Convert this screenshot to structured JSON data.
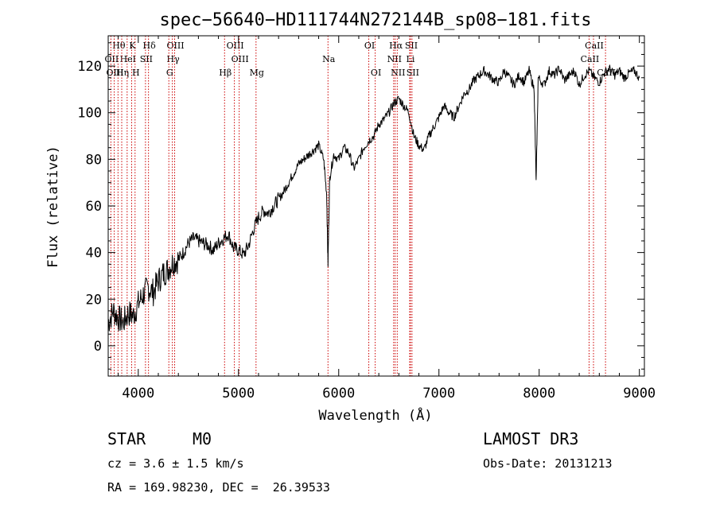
{
  "chart_data": {
    "type": "line",
    "title": "spec−56640−HD111744N272144B_sp08−181.fits",
    "xlabel": "Wavelength (Å)",
    "ylabel": "Flux (relative)",
    "xlim": [
      3700,
      9050
    ],
    "ylim": [
      -13,
      133
    ],
    "xticks": [
      4000,
      5000,
      6000,
      7000,
      8000,
      9000
    ],
    "yticks": [
      0,
      20,
      40,
      60,
      80,
      100,
      120
    ],
    "grid": false,
    "line_color": "#000000",
    "marker_line_color": "#cc0000",
    "spectrum": {
      "x": [
        3700,
        3750,
        3800,
        3850,
        3900,
        3950,
        4000,
        4050,
        4100,
        4150,
        4200,
        4250,
        4300,
        4350,
        4400,
        4450,
        4500,
        4550,
        4600,
        4650,
        4700,
        4750,
        4800,
        4850,
        4900,
        4950,
        5000,
        5050,
        5100,
        5150,
        5200,
        5250,
        5300,
        5350,
        5400,
        5450,
        5500,
        5550,
        5600,
        5650,
        5700,
        5750,
        5800,
        5850,
        5880,
        5893,
        5910,
        5950,
        6000,
        6050,
        6100,
        6150,
        6200,
        6250,
        6300,
        6350,
        6400,
        6450,
        6500,
        6550,
        6600,
        6650,
        6700,
        6750,
        6800,
        6850,
        6900,
        6950,
        7000,
        7050,
        7100,
        7150,
        7200,
        7250,
        7300,
        7350,
        7400,
        7450,
        7500,
        7550,
        7600,
        7650,
        7700,
        7750,
        7800,
        7850,
        7900,
        7950,
        7970,
        7990,
        8050,
        8100,
        8150,
        8200,
        8250,
        8300,
        8350,
        8400,
        8450,
        8500,
        8550,
        8600,
        8650,
        8700,
        8750,
        8800,
        8850,
        8900,
        8950,
        9000
      ],
      "y": [
        10,
        15,
        12,
        10,
        14,
        13,
        18,
        22,
        25,
        23,
        28,
        31,
        33,
        36,
        37,
        40,
        44,
        46,
        45,
        44,
        43,
        41,
        44,
        46,
        48,
        42,
        41,
        39,
        43,
        50,
        55,
        58,
        57,
        60,
        63,
        66,
        70,
        74,
        78,
        80,
        82,
        84,
        86,
        80,
        65,
        35,
        72,
        82,
        80,
        85,
        83,
        76,
        80,
        85,
        88,
        90,
        95,
        97,
        100,
        104,
        106,
        103,
        100,
        90,
        86,
        84,
        90,
        94,
        98,
        103,
        100,
        98,
        103,
        108,
        110,
        114,
        116,
        118,
        116,
        114,
        113,
        118,
        115,
        112,
        116,
        113,
        118,
        110,
        70,
        115,
        112,
        118,
        116,
        119,
        114,
        116,
        118,
        112,
        116,
        118,
        115,
        113,
        117,
        119,
        116,
        118,
        115,
        117,
        118,
        115
      ]
    },
    "markers": [
      {
        "label": "Hθ",
        "wavelength": 3798,
        "row": 0
      },
      {
        "label": "K",
        "wavelength": 3934,
        "row": 0
      },
      {
        "label": "Hδ",
        "wavelength": 4102,
        "row": 0
      },
      {
        "label": "OIII",
        "wavelength": 4363,
        "row": 0
      },
      {
        "label": "OIII",
        "wavelength": 4959,
        "row": 0
      },
      {
        "label": "OI",
        "wavelength": 6300,
        "row": 0
      },
      {
        "label": "Hα",
        "wavelength": 6563,
        "row": 0
      },
      {
        "label": "SII",
        "wavelength": 6716,
        "row": 0
      },
      {
        "label": "CaII",
        "wavelength": 8542,
        "row": 0
      },
      {
        "label": "OII",
        "wavelength": 3727,
        "row": 1
      },
      {
        "label": "HeI",
        "wavelength": 3889,
        "row": 1
      },
      {
        "label": "SII",
        "wavelength": 4072,
        "row": 1
      },
      {
        "label": "Hγ",
        "wavelength": 4340,
        "row": 1
      },
      {
        "label": "OIII",
        "wavelength": 5007,
        "row": 1
      },
      {
        "label": "Na",
        "wavelength": 5893,
        "row": 1
      },
      {
        "label": "NII",
        "wavelength": 6548,
        "row": 1
      },
      {
        "label": "Li",
        "wavelength": 6708,
        "row": 1
      },
      {
        "label": "CaII",
        "wavelength": 8498,
        "row": 1
      },
      {
        "label": "OIII",
        "wavelength": 3760,
        "row": 2
      },
      {
        "label": "Hη",
        "wavelength": 3835,
        "row": 2
      },
      {
        "label": "H",
        "wavelength": 3968,
        "row": 2
      },
      {
        "label": "G",
        "wavelength": 4305,
        "row": 2
      },
      {
        "label": "Hβ",
        "wavelength": 4861,
        "row": 2
      },
      {
        "label": "Mg",
        "wavelength": 5175,
        "row": 2
      },
      {
        "label": "OI",
        "wavelength": 6364,
        "row": 2
      },
      {
        "label": "NII",
        "wavelength": 6584,
        "row": 2
      },
      {
        "label": "SII",
        "wavelength": 6731,
        "row": 2
      },
      {
        "label": "CaII",
        "wavelength": 8662,
        "row": 2
      }
    ]
  },
  "info": {
    "class": "STAR",
    "subclass": "M0",
    "survey": "LAMOST DR3",
    "redshift": "cz = 3.6 ± 1.5 km/s",
    "obs_date": "Obs-Date: 20131213",
    "coords": "RA = 169.98230, DEC =  26.39533"
  }
}
